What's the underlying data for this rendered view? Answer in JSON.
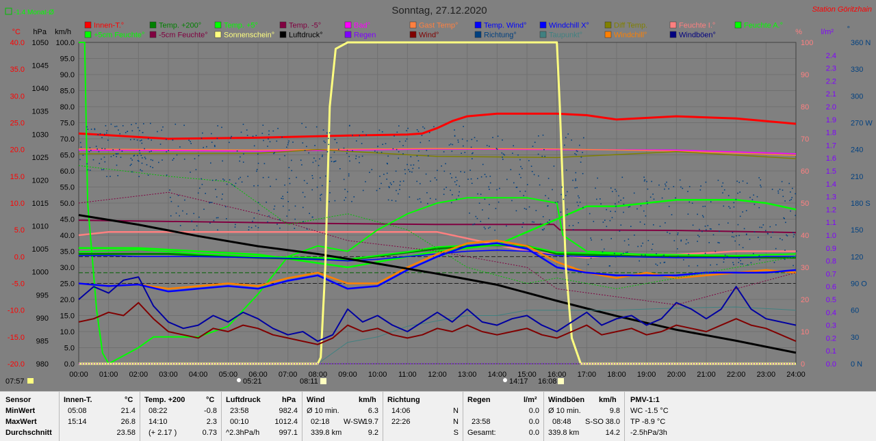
{
  "header": {
    "title": "Sonntag, 27.12.2020",
    "station": "Station Göritzhain",
    "monat": "-1.4 Monat-Ø"
  },
  "colors": {
    "background": "#808080",
    "plot_background": "#808080",
    "grid": "#6e6e6e"
  },
  "chart_data": {
    "type": "line",
    "title": "Sonntag, 27.12.2020",
    "legend": [
      {
        "name": "Innen-T.°",
        "color": "#ff0000"
      },
      {
        "name": "Temp. +200°",
        "color": "#008000"
      },
      {
        "name": "Temp. +5°",
        "color": "#00ff00"
      },
      {
        "name": "Temp. -5°",
        "color": "#800040"
      },
      {
        "name": "Bad°",
        "color": "#ff00ff"
      },
      {
        "name": "Gast Temp°",
        "color": "#ff8040"
      },
      {
        "name": "Temp. Wind°",
        "color": "#0000ff"
      },
      {
        "name": "Windchill X°",
        "color": "#0000ff"
      },
      {
        "name": "Diff Temp.",
        "color": "#808000"
      },
      {
        "name": "Feuchte I.°",
        "color": "#ff8080"
      },
      {
        "name": "Feuchte A.°",
        "color": "#00ff00"
      },
      {
        "name": "+5cm Feuchte°",
        "color": "#00ff00"
      },
      {
        "name": "-5cm Feuchte°",
        "color": "#800040"
      },
      {
        "name": "Sonnenschein°",
        "color": "#ffff80"
      },
      {
        "name": "Luftdruck°",
        "color": "#000000"
      },
      {
        "name": "Regen",
        "color": "#8000ff"
      },
      {
        "name": "Wind°",
        "color": "#800000"
      },
      {
        "name": "Richtung°",
        "color": "#004080"
      },
      {
        "name": "Taupunkt°",
        "color": "#408080"
      },
      {
        "name": "Windchill°",
        "color": "#ff8000"
      },
      {
        "name": "Windböen°",
        "color": "#000080"
      }
    ],
    "axes": {
      "temp_unit": "°C",
      "temp_ticks": [
        "40.0",
        "35.0",
        "30.0",
        "25.0",
        "20.0",
        "15.0",
        "10.0",
        "5.0",
        "0.0",
        "-5.0",
        "-10.0",
        "-15.0",
        "-20.0"
      ],
      "temp_range": [
        -20,
        40
      ],
      "press_unit": "hPa",
      "press_ticks": [
        "1050",
        "1045",
        "1040",
        "1035",
        "1030",
        "1025",
        "1020",
        "1015",
        "1010",
        "1005",
        "1000",
        "995",
        "990",
        "985",
        "980"
      ],
      "press_range": [
        980,
        1050
      ],
      "wind_unit": "km/h",
      "wind_ticks": [
        "100.0",
        "95.0",
        "90.0",
        "85.0",
        "80.0",
        "75.0",
        "70.0",
        "65.0",
        "60.0",
        "55.0",
        "50.0",
        "45.0",
        "40.0",
        "35.0",
        "30.0",
        "25.0",
        "20.0",
        "15.0",
        "10.0",
        "5.0",
        "0.0"
      ],
      "wind_range": [
        0,
        100
      ],
      "hum_unit": "%",
      "hum_ticks": [
        "100",
        "90",
        "80",
        "70",
        "60",
        "50",
        "40",
        "30",
        "20",
        "10",
        "0"
      ],
      "hum_range": [
        0,
        100
      ],
      "rain_unit": "l/m²",
      "rain_ticks": [
        "2.4",
        "2.3",
        "2.2",
        "2.1",
        "2.0",
        "1.9",
        "1.8",
        "1.7",
        "1.6",
        "1.5",
        "1.4",
        "1.3",
        "1.2",
        "1.1",
        "1.0",
        "0.9",
        "0.8",
        "0.7",
        "0.6",
        "0.5",
        "0.4",
        "0.3",
        "0.2",
        "0.1",
        "0.0"
      ],
      "rain_range": [
        0,
        2.5
      ],
      "dir_unit": "°",
      "dir_ticks": [
        "360 N",
        "330",
        "300",
        "270 W",
        "240",
        "210",
        "180 S",
        "150",
        "120",
        "90 O",
        "60",
        "30",
        "0 N"
      ],
      "dir_range": [
        0,
        360
      ],
      "time_ticks": [
        "00:00",
        "01:00",
        "02:00",
        "03:00",
        "04:00",
        "05:00",
        "06:00",
        "07:00",
        "08:00",
        "09:00",
        "10:00",
        "11:00",
        "12:00",
        "13:00",
        "14:00",
        "15:00",
        "16:00",
        "17:00",
        "18:00",
        "19:00",
        "20:00",
        "21:00",
        "22:00",
        "23:00",
        "24:00"
      ],
      "time_range": [
        0,
        24
      ],
      "grid": true
    },
    "astro": {
      "civil_dawn": "07:57",
      "sunrise": "08:11",
      "sunset": "16:08",
      "moonrise": "05:21",
      "moonset": "14:17"
    },
    "series": [
      {
        "name": "Innen-T.°",
        "axis": "temp",
        "x": [
          0,
          3,
          6,
          9,
          11,
          11.5,
          12,
          12.5,
          13,
          14,
          16,
          17,
          18,
          20,
          22,
          24
        ],
        "y": [
          23.0,
          22.0,
          22.2,
          22.6,
          22.8,
          23.0,
          24.0,
          25.3,
          26.2,
          26.7,
          26.7,
          26.4,
          25.6,
          26.2,
          25.8,
          24.8
        ]
      },
      {
        "name": "Bad°",
        "axis": "temp",
        "x": [
          0,
          6,
          12,
          16,
          20,
          24
        ],
        "y": [
          19.9,
          19.7,
          20.1,
          20.0,
          19.9,
          19.2
        ]
      },
      {
        "name": "Gast Temp°",
        "axis": "temp",
        "x": [
          0,
          6,
          12,
          16,
          20,
          24
        ],
        "y": [
          20.1,
          19.9,
          20.2,
          20.1,
          19.7,
          18.9
        ]
      },
      {
        "name": "Diff Temp.",
        "axis": "temp",
        "x": [
          0,
          6,
          8,
          12,
          16,
          20,
          24
        ],
        "y": [
          19.2,
          19.3,
          20.0,
          18.7,
          18.5,
          19.6,
          18.3
        ]
      },
      {
        "name": "Temp. -5°",
        "axis": "temp",
        "x": [
          0,
          4,
          8,
          12,
          15.9,
          16.1,
          20,
          24
        ],
        "y": [
          6.8,
          6.5,
          6.2,
          6.0,
          6.0,
          5.0,
          4.9,
          4.5
        ]
      },
      {
        "name": "Feuchte I.°",
        "axis": "hum",
        "x": [
          0,
          1,
          4,
          7,
          12,
          13,
          14,
          15,
          16,
          17,
          18,
          20,
          22,
          24
        ],
        "y": [
          40,
          41,
          41,
          41,
          41,
          39,
          37,
          35,
          34,
          33,
          34,
          34,
          35,
          35
        ]
      },
      {
        "name": "Feuchte A.°",
        "axis": "hum",
        "x": [
          0,
          2,
          6,
          9,
          12,
          14,
          15,
          16,
          17,
          18,
          20,
          22,
          23,
          24
        ],
        "y": [
          36,
          36,
          34,
          30,
          35,
          37,
          41,
          45,
          49,
          49,
          51,
          51,
          50,
          48
        ]
      },
      {
        "name": "+5cm Feuchte°",
        "axis": "temp",
        "x": [
          0,
          0.2,
          0.3,
          0.6,
          0.8,
          1,
          2,
          2.5,
          3,
          4,
          5,
          6,
          7,
          8,
          9,
          10,
          11,
          12,
          13,
          14,
          15,
          16,
          16.2,
          17,
          20,
          24
        ],
        "y": [
          40,
          40,
          10,
          -10,
          -18,
          -20,
          -17,
          -15,
          -15,
          -15,
          -13,
          -7,
          0,
          2,
          1,
          5,
          8,
          10,
          11,
          11,
          11,
          10,
          4,
          1,
          0,
          0
        ]
      },
      {
        "name": "Temp. +200°",
        "axis": "temp",
        "x": [
          0,
          3,
          6,
          9,
          12,
          13.5,
          15,
          16,
          19,
          24
        ],
        "y": [
          0.5,
          0.5,
          -0.2,
          -0.6,
          1.5,
          2.2,
          2.0,
          0.5,
          0.0,
          -0.2
        ]
      },
      {
        "name": "Temp. +5°",
        "axis": "temp",
        "x": [
          0,
          2,
          4,
          6,
          8,
          9,
          11,
          12,
          13,
          14,
          15,
          16,
          18,
          22,
          24
        ],
        "y": [
          0.9,
          1.3,
          0.5,
          0.0,
          -0.2,
          -0.5,
          0.9,
          1.8,
          2.1,
          2.2,
          2.0,
          0.8,
          0.5,
          0.2,
          0.5
        ]
      },
      {
        "name": "Windchill X°",
        "axis": "temp",
        "x": [
          0,
          1,
          2,
          3,
          4,
          6,
          7,
          8,
          9,
          10,
          11,
          12,
          13,
          14,
          15,
          16,
          17,
          18,
          20,
          22,
          23,
          24
        ],
        "y": [
          0.2,
          0.2,
          0.0,
          0.0,
          0.0,
          -0.2,
          -0.3,
          -0.5,
          -0.8,
          -0.5,
          0.0,
          0.5,
          1.0,
          1.2,
          1.0,
          0.2,
          0.0,
          0.0,
          -0.2,
          -0.2,
          0.0,
          0.0
        ]
      },
      {
        "name": "Windchill°",
        "axis": "temp",
        "x": [
          0,
          1,
          2,
          3,
          4,
          5,
          6,
          7,
          8,
          9,
          10,
          11,
          12,
          13,
          14,
          15,
          16,
          17,
          18,
          19,
          20,
          21,
          22,
          23,
          24
        ],
        "y": [
          -5,
          -5.5,
          -5.2,
          -6,
          -5.5,
          -5,
          -5.5,
          -4,
          -3,
          -5,
          -5,
          -2,
          0.5,
          2.5,
          3,
          2,
          -1,
          -3,
          -4,
          -3,
          -4,
          -3.5,
          -3,
          -2.5,
          -3
        ]
      },
      {
        "name": "Temp. Wind°",
        "axis": "temp",
        "x": [
          0,
          1,
          2,
          3,
          4,
          5,
          6,
          7,
          8,
          9,
          10,
          11,
          12,
          13,
          14,
          15,
          16,
          17,
          18,
          19,
          20,
          21,
          22,
          23,
          24
        ],
        "y": [
          -5,
          -5.5,
          -5.2,
          -6.5,
          -6,
          -5.5,
          -6,
          -4.5,
          -3.5,
          -6,
          -5.5,
          -2.5,
          0,
          2,
          2.5,
          1.5,
          -2,
          -3,
          -3.5,
          -3.5,
          -3.5,
          -3,
          -3,
          -3,
          -2.5
        ]
      },
      {
        "name": "Luftdruck°",
        "axis": "press",
        "x": [
          0,
          2,
          4,
          6,
          8,
          10,
          12,
          14,
          16,
          18,
          20,
          22,
          24
        ],
        "y": [
          1012.4,
          1010.3,
          1007.8,
          1005.6,
          1003.9,
          1001.8,
          999.6,
          997.2,
          993.7,
          990.4,
          987.4,
          985.0,
          982.4
        ]
      },
      {
        "name": "Taupunkt°",
        "axis": "temp",
        "x": [
          0,
          3,
          6,
          7,
          8,
          9,
          10,
          11,
          12,
          13,
          14,
          15,
          16,
          18,
          20,
          22,
          24
        ],
        "y": [
          -20,
          -20,
          -20,
          -20,
          -20,
          -16,
          -15,
          -13,
          -12,
          -11,
          -11,
          -10,
          -10,
          -10,
          -9.6,
          -9.4,
          -10.0
        ]
      },
      {
        "name": "Sonnenschein°",
        "axis": "wind",
        "x": [
          0,
          8.0,
          8.1,
          8.25,
          8.4,
          8.6,
          9.0,
          16.0,
          16.1,
          16.3,
          16.5,
          16.8,
          24
        ],
        "y": [
          0,
          0,
          2,
          30,
          80,
          98,
          100,
          100,
          80,
          30,
          8,
          0,
          0
        ]
      },
      {
        "name": "Wind°",
        "axis": "wind",
        "x": [
          0,
          0.5,
          1,
          1.5,
          2,
          2.5,
          3,
          3.5,
          4,
          4.5,
          5,
          5.5,
          6,
          6.5,
          7,
          7.5,
          8,
          8.5,
          9,
          9.5,
          10,
          10.5,
          11,
          11.5,
          12,
          12.5,
          13,
          13.5,
          14,
          14.5,
          15,
          15.5,
          16,
          16.5,
          17,
          17.5,
          18,
          18.5,
          19,
          19.5,
          20,
          20.5,
          21,
          21.5,
          22,
          22.5,
          23,
          23.5,
          24
        ],
        "y": [
          13,
          14,
          16,
          15,
          19,
          14,
          10,
          9,
          8,
          11,
          10,
          12,
          11,
          9,
          8,
          7,
          6,
          8,
          12,
          10,
          11,
          9,
          8,
          9,
          11,
          10,
          12,
          10,
          9,
          10,
          11,
          9,
          8,
          10,
          12,
          9,
          10,
          11,
          9,
          10,
          12,
          11,
          10,
          12,
          14,
          12,
          11,
          9,
          7
        ]
      },
      {
        "name": "Windböen°",
        "axis": "wind",
        "x": [
          0,
          0.5,
          1,
          1.5,
          2,
          2.5,
          3,
          3.5,
          4,
          4.5,
          5,
          5.5,
          6,
          6.5,
          7,
          7.5,
          8,
          8.5,
          9,
          9.5,
          10,
          10.5,
          11,
          11.5,
          12,
          12.5,
          13,
          13.5,
          14,
          14.5,
          15,
          15.5,
          16,
          16.5,
          17,
          17.5,
          18,
          18.5,
          19,
          19.5,
          20,
          20.5,
          21,
          21.5,
          22,
          22.5,
          23,
          23.5,
          24
        ],
        "y": [
          20,
          24,
          22,
          26,
          27,
          18,
          13,
          11,
          12,
          15,
          13,
          16,
          14,
          11,
          9,
          10,
          7,
          9,
          17,
          13,
          15,
          12,
          10,
          13,
          16,
          13,
          17,
          13,
          12,
          14,
          15,
          12,
          10,
          13,
          16,
          12,
          14,
          15,
          12,
          14,
          19,
          17,
          14,
          17,
          24,
          17,
          14,
          13,
          12
        ]
      },
      {
        "name": "Regen",
        "axis": "rain",
        "x": [
          0,
          24
        ],
        "y": [
          0,
          0
        ]
      }
    ],
    "richtung_scatter": {
      "seed_ranges": [
        {
          "from": 0,
          "to": 3,
          "min": 210,
          "max": 270
        },
        {
          "from": 3,
          "to": 8,
          "min": 150,
          "max": 270
        },
        {
          "from": 8,
          "to": 13,
          "min": 180,
          "max": 270
        },
        {
          "from": 13,
          "to": 17,
          "min": 150,
          "max": 260
        },
        {
          "from": 17,
          "to": 24,
          "min": 110,
          "max": 210
        }
      ]
    }
  },
  "stats": {
    "row_labels": {
      "title": "Sensor",
      "min": "MinWert",
      "max": "MaxWert",
      "avg": "Durchschnitt"
    },
    "innen": {
      "title": "Innen-T.",
      "unit": "°C",
      "min_time": "05:08",
      "min_val": "21.4",
      "max_time": "15:14",
      "max_val": "26.8",
      "avg": "23.58"
    },
    "temp200": {
      "title": "Temp. +200",
      "unit": "°C",
      "min_time": "08:22",
      "min_val": "-0.8",
      "max_time": "14:10",
      "max_val": "2.3",
      "avg_note": "(+ 2.17 )",
      "avg": "0.73"
    },
    "luftdruck": {
      "title": "Luftdruck",
      "unit": "hPa",
      "min_time": "23:58",
      "min_val": "982.4",
      "max_time": "00:10",
      "max_val": "1012.4",
      "avg_note": "^2.3hPa/h",
      "avg": "997.1"
    },
    "wind": {
      "title": "Wind",
      "unit": "km/h",
      "min_time": "Ø 10 min.",
      "min_val": "6.3",
      "max_time": "02:18",
      "max_dir": "W-SW",
      "max_val": "19.7",
      "avg_note": "339.8 km",
      "avg": "9.2"
    },
    "richtung": {
      "title": "Richtung",
      "min_time": "14:06",
      "min_val": "N",
      "max_time": "22:26",
      "max_val": "N",
      "avg": "S"
    },
    "regen": {
      "title": "Regen",
      "unit": "l/m²",
      "min_val": "0.0",
      "max_time": "23:58",
      "max_val": "0.0",
      "avg_note": "Gesamt:",
      "avg": "0.0"
    },
    "boeen": {
      "title": "Windböen",
      "unit": "km/h",
      "min_time": "Ø 10 min.",
      "min_val": "9.8",
      "max_time": "08:48",
      "max_dir": "S-SO",
      "max_val": "38.0",
      "avg_note": "339.8 km",
      "avg": "14.2"
    },
    "pmv": {
      "title": "PMV-1:1",
      "min_val": "WC -1.5 °C",
      "max_val": "TP -8.9 °C",
      "avg": "-2.5hPa/3h"
    }
  }
}
